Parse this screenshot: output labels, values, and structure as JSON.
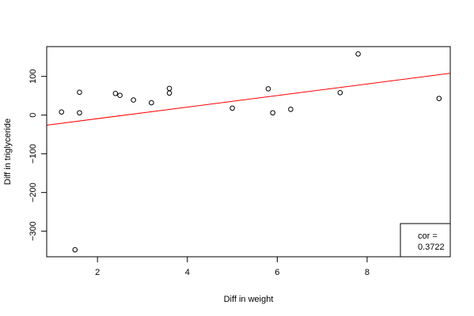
{
  "chart_data": {
    "type": "scatter",
    "xlabel": "Diff in weight",
    "ylabel": "Diff in triglyceride",
    "xlim": [
      0.87,
      9.85
    ],
    "ylim": [
      -366,
      177
    ],
    "x_ticks": [
      2,
      4,
      6,
      8
    ],
    "y_ticks": [
      -300,
      -200,
      -100,
      0,
      100
    ],
    "grid": false,
    "points": [
      {
        "x": 1.2,
        "y": 8
      },
      {
        "x": 1.5,
        "y": -348
      },
      {
        "x": 1.6,
        "y": 59
      },
      {
        "x": 1.6,
        "y": 6
      },
      {
        "x": 2.4,
        "y": 56
      },
      {
        "x": 2.5,
        "y": 51
      },
      {
        "x": 2.8,
        "y": 39
      },
      {
        "x": 3.2,
        "y": 32
      },
      {
        "x": 3.6,
        "y": 69
      },
      {
        "x": 3.6,
        "y": 57
      },
      {
        "x": 5.0,
        "y": 18
      },
      {
        "x": 5.8,
        "y": 68
      },
      {
        "x": 5.9,
        "y": 6
      },
      {
        "x": 6.3,
        "y": 15
      },
      {
        "x": 7.4,
        "y": 58
      },
      {
        "x": 7.8,
        "y": 158
      },
      {
        "x": 9.6,
        "y": 43
      }
    ],
    "fit_line": {
      "color": "#ff0000",
      "x": [
        0.87,
        9.85
      ],
      "y": [
        -26,
        108
      ]
    },
    "legend": {
      "position": "bottom-right",
      "label": "cor =",
      "value": "0.3722"
    }
  }
}
